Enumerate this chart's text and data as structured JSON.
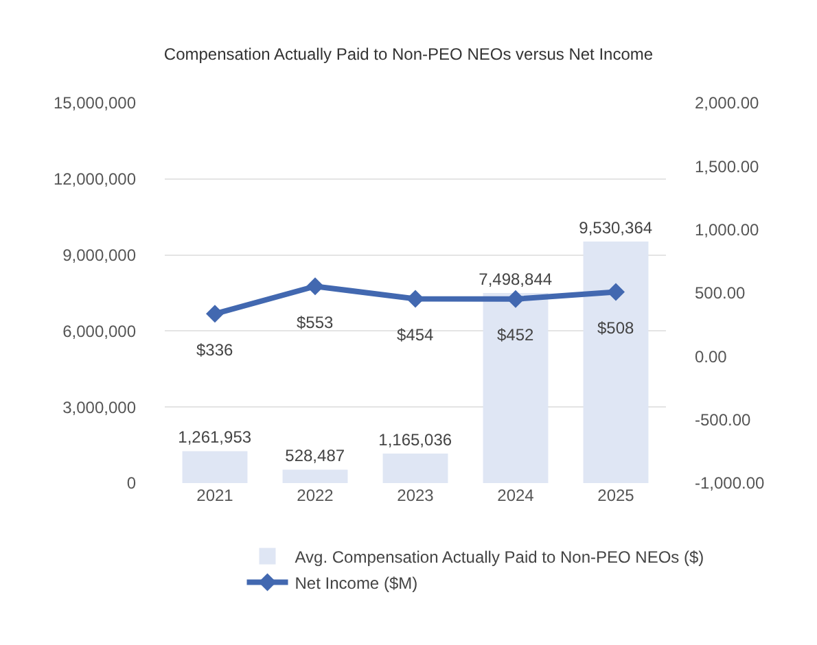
{
  "chart_data": {
    "type": "bar",
    "title": "Compensation Actually Paid to Non-PEO NEOs versus Net Income",
    "categories": [
      "2021",
      "2022",
      "2023",
      "2024",
      "2025"
    ],
    "series": [
      {
        "name": "Avg. Compensation Actually Paid to Non-PEO NEOs ($)",
        "color": "#dfe6f4",
        "values": [
          1261953,
          528487,
          1165036,
          7498844,
          9530364
        ],
        "value_labels": [
          "1,261,953",
          "528,487",
          "1,165,036",
          "7,498,844",
          "9,530,364"
        ]
      },
      {
        "name": "Net Income ($M)",
        "type": "line",
        "axis": "y2",
        "color": "#4268b0",
        "marker": "diamond",
        "values": [
          336,
          553,
          454,
          452,
          508
        ],
        "value_labels": [
          "$336",
          "$553",
          "$454",
          "$452",
          "$508"
        ]
      }
    ],
    "ylim": [
      0,
      15000000
    ],
    "yticks": [
      {
        "value": 0,
        "label": "0"
      },
      {
        "value": 3000000,
        "label": "3,000,000"
      },
      {
        "value": 6000000,
        "label": "6,000,000"
      },
      {
        "value": 9000000,
        "label": "9,000,000"
      },
      {
        "value": 12000000,
        "label": "12,000,000"
      },
      {
        "value": 15000000,
        "label": "15,000,000"
      }
    ],
    "y2lim": [
      -1000,
      2000
    ],
    "y2ticks": [
      {
        "value": -1000,
        "label": "-1,000.00"
      },
      {
        "value": -500,
        "label": "-500.00"
      },
      {
        "value": 0,
        "label": "0.00"
      },
      {
        "value": 500,
        "label": "500.00"
      },
      {
        "value": 1000,
        "label": "1,000.00"
      },
      {
        "value": 1500,
        "label": "1,500.00"
      },
      {
        "value": 2000,
        "label": "2,000.00"
      }
    ],
    "grid": "y",
    "legend": "bottom"
  }
}
